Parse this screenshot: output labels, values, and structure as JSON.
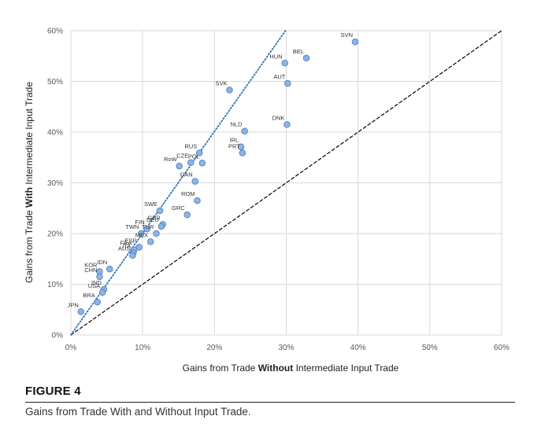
{
  "figure": {
    "label": "FIGURE 4",
    "caption": "Gains from Trade With and Without Input Trade."
  },
  "chart_data": {
    "type": "scatter",
    "title": "",
    "xlabel_parts": [
      "Gains from Trade ",
      "Without",
      " Intermediate Input Trade"
    ],
    "ylabel_parts": [
      "Gains from Trade ",
      "With",
      " Intermediate Input Trade"
    ],
    "xlim": [
      0,
      60
    ],
    "ylim": [
      0,
      60
    ],
    "x_ticks": [
      "0%",
      "10%",
      "20%",
      "30%",
      "40%",
      "50%",
      "60%"
    ],
    "y_ticks": [
      "0%",
      "10%",
      "20%",
      "30%",
      "40%",
      "50%",
      "60%"
    ],
    "grid": true,
    "colors": {
      "point_fill": "#8db4e2",
      "point_stroke": "#4f81bd",
      "fit_line": "#2e75b6",
      "diagonal": "#000000",
      "grid": "#d9d9d9"
    },
    "lines": [
      {
        "name": "45-degree line",
        "style": "dashed",
        "color": "#000000",
        "x": [
          0,
          60
        ],
        "y": [
          0,
          60
        ]
      },
      {
        "name": "fitted line",
        "style": "dotted",
        "color": "#2e75b6",
        "x": [
          0,
          29.9
        ],
        "y": [
          0,
          60
        ]
      }
    ],
    "points": [
      {
        "label": "SVN",
        "x": 39.6,
        "y": 57.8
      },
      {
        "label": "BEL",
        "x": 32.8,
        "y": 54.6
      },
      {
        "label": "HUN",
        "x": 29.8,
        "y": 53.6
      },
      {
        "label": "AUT",
        "x": 30.2,
        "y": 49.6
      },
      {
        "label": "SVK",
        "x": 22.1,
        "y": 48.3
      },
      {
        "label": "DNK",
        "x": 30.1,
        "y": 41.5
      },
      {
        "label": "NLD",
        "x": 24.2,
        "y": 40.2
      },
      {
        "label": "IRL",
        "x": 23.7,
        "y": 37.1
      },
      {
        "label": "PRT",
        "x": 23.9,
        "y": 35.9
      },
      {
        "label": "RUS",
        "x": 17.9,
        "y": 35.9
      },
      {
        "label": "POL",
        "x": 18.3,
        "y": 33.9
      },
      {
        "label": "CZE",
        "x": 16.7,
        "y": 34.0
      },
      {
        "label": "RoW",
        "x": 15.1,
        "y": 33.3
      },
      {
        "label": "CAN",
        "x": 17.3,
        "y": 30.3
      },
      {
        "label": "ROM",
        "x": 17.6,
        "y": 26.5
      },
      {
        "label": "GRC",
        "x": 16.2,
        "y": 23.7
      },
      {
        "label": "SWE",
        "x": 12.4,
        "y": 24.5
      },
      {
        "label": "GBR",
        "x": 12.8,
        "y": 21.8
      },
      {
        "label": "DEU",
        "x": 12.6,
        "y": 21.4
      },
      {
        "label": "FIN",
        "x": 10.6,
        "y": 20.9
      },
      {
        "label": "TUR",
        "x": 11.9,
        "y": 20.0
      },
      {
        "label": "TWN",
        "x": 9.8,
        "y": 20.0
      },
      {
        "label": "MEX",
        "x": 11.1,
        "y": 18.4
      },
      {
        "label": "ESP",
        "x": 9.5,
        "y": 17.3
      },
      {
        "label": "FRA",
        "x": 8.8,
        "y": 16.8
      },
      {
        "label": "ITA",
        "x": 8.7,
        "y": 16.2
      },
      {
        "label": "AUS",
        "x": 8.6,
        "y": 15.7
      },
      {
        "label": "IDN",
        "x": 5.4,
        "y": 13.0
      },
      {
        "label": "KOR",
        "x": 4.0,
        "y": 12.5
      },
      {
        "label": "CHN",
        "x": 4.0,
        "y": 11.5
      },
      {
        "label": "IND",
        "x": 4.6,
        "y": 9.0
      },
      {
        "label": "USA",
        "x": 4.4,
        "y": 8.4
      },
      {
        "label": "BRA",
        "x": 3.7,
        "y": 6.5
      },
      {
        "label": "JPN",
        "x": 1.4,
        "y": 4.6
      }
    ]
  }
}
